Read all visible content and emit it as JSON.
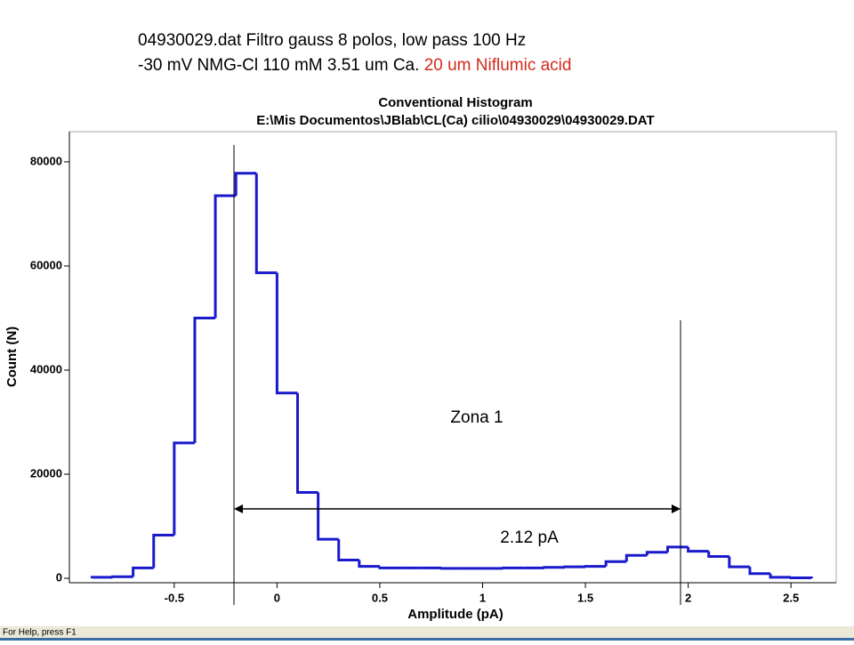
{
  "chart_data": {
    "type": "histogram",
    "header_line1": "04930029.dat Filtro gauss 8 polos, low pass 100 Hz",
    "header_line2": "-30 mV NMG-Cl 110 mM 3.51 um Ca.",
    "header_line2_highlight": "20 um Niflumic acid",
    "title": "Conventional Histogram",
    "subtitle": "E:\\Mis Documentos\\JBlab\\CL(Ca) cilio\\04930029\\04930029.DAT",
    "xlabel": "Amplitude (pA)",
    "ylabel": "Count (N)",
    "bins": [
      -0.9,
      -0.8,
      -0.7,
      -0.6,
      -0.5,
      -0.4,
      -0.3,
      -0.2,
      -0.1,
      0,
      0.1,
      0.2,
      0.3,
      0.4,
      0.5,
      0.6,
      0.7,
      0.8,
      0.9,
      1,
      1.1,
      1.2,
      1.3,
      1.4,
      1.5,
      1.6,
      1.7,
      1.8,
      1.9,
      2,
      2.1,
      2.2,
      2.3,
      2.4,
      2.5,
      2.6
    ],
    "values": [
      200,
      300,
      2000,
      8300,
      26000,
      50000,
      73500,
      77800,
      58700,
      35600,
      16500,
      7500,
      3500,
      2300,
      2000,
      2000,
      2000,
      1900,
      1900,
      1900,
      2000,
      2000,
      2100,
      2200,
      2300,
      3200,
      4400,
      5000,
      6000,
      5200,
      4200,
      2200,
      900,
      200,
      100
    ],
    "color": "#1a1acc",
    "xlim": [
      -1.01,
      2.72
    ],
    "ylim": [
      -850,
      85800
    ],
    "xticks": [
      -0.5,
      0,
      0.5,
      1,
      1.5,
      2,
      2.5
    ],
    "yticks": [
      0,
      20000,
      40000,
      60000,
      80000
    ],
    "annotations": [
      "Zona 1",
      "2.12 pA"
    ],
    "status_bar": "For Help, press F1"
  }
}
